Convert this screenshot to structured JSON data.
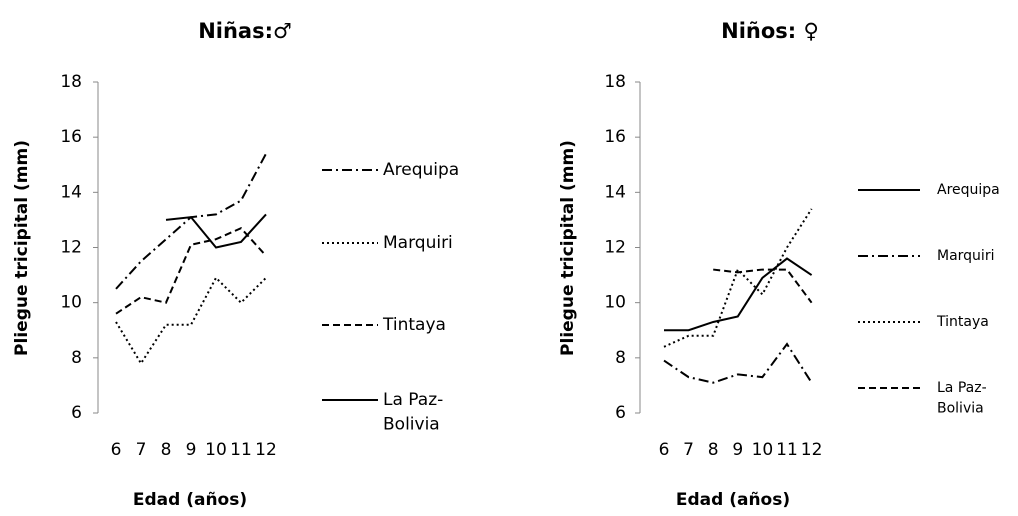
{
  "chart_data": [
    {
      "type": "line",
      "title": "Niñas:♂",
      "x_label": "Edad (años)",
      "y_label": "Pliegue tricipital (mm)",
      "categories": [
        "6",
        "7",
        "8",
        "9",
        "10",
        "11",
        "12"
      ],
      "ylim": [
        6,
        18
      ],
      "yticks": [
        6,
        8,
        10,
        12,
        14,
        16,
        18
      ],
      "legend": "right",
      "series": [
        {
          "name": "Arequipa",
          "color": "#000000",
          "dash": "dashdot",
          "values": [
            10.5,
            11.5,
            12.3,
            13.1,
            13.2,
            13.7,
            15.4
          ]
        },
        {
          "name": "Marquiri",
          "color": "#000000",
          "dash": "dotted",
          "values": [
            9.3,
            7.8,
            9.2,
            9.2,
            10.9,
            10.0,
            10.9
          ]
        },
        {
          "name": "Tintaya",
          "color": "#000000",
          "dash": "dashed",
          "values": [
            9.6,
            10.2,
            10.0,
            12.1,
            12.3,
            12.7,
            11.7
          ]
        },
        {
          "name": "La Paz-Bolivia",
          "color": "#000000",
          "dash": "solid",
          "values": [
            null,
            null,
            13.0,
            13.1,
            12.0,
            12.2,
            13.2
          ]
        }
      ]
    },
    {
      "type": "line",
      "title": "Niños: ♀",
      "x_label": "Edad (años)",
      "y_label": "Pliegue tricipital (mm)",
      "categories": [
        "6",
        "7",
        "8",
        "9",
        "10",
        "11",
        "12"
      ],
      "ylim": [
        6,
        18
      ],
      "yticks": [
        6,
        8,
        10,
        12,
        14,
        16,
        18
      ],
      "legend": "right",
      "series": [
        {
          "name": "Arequipa",
          "color": "#000000",
          "dash": "solid",
          "values": [
            9.0,
            9.0,
            9.3,
            9.5,
            10.9,
            11.6,
            11.0
          ]
        },
        {
          "name": "Marquiri",
          "color": "#000000",
          "dash": "dashdot",
          "values": [
            7.9,
            7.3,
            7.1,
            7.4,
            7.3,
            8.5,
            7.1
          ]
        },
        {
          "name": "Tintaya",
          "color": "#000000",
          "dash": "dotted",
          "values": [
            8.4,
            8.8,
            8.8,
            11.2,
            10.3,
            12.0,
            13.4
          ]
        },
        {
          "name": "La Paz-Bolivia",
          "color": "#000000",
          "dash": "dashed",
          "values": [
            null,
            null,
            11.2,
            11.1,
            11.2,
            11.2,
            10.0
          ]
        }
      ]
    }
  ]
}
